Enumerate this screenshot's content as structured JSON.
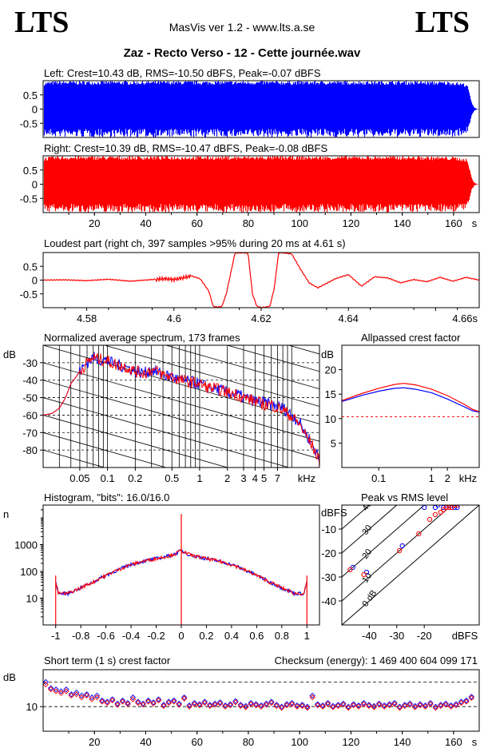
{
  "header": {
    "logo_left": "LTS",
    "logo_right": "LTS",
    "app": "MasVis ver 1.2 - www.lts.a.se",
    "file": "Zaz - Recto Verso - 12 - Cette journée.wav"
  },
  "colors": {
    "left": "#0000ff",
    "right": "#ff0000"
  },
  "chart_data": [
    {
      "id": "left",
      "type": "area",
      "title": "Left: Crest=10.43 dB, RMS=-10.50 dBFS, Peak=-0.07 dBFS",
      "y_ticks": [
        "0.5",
        "0",
        "-0.5"
      ],
      "ylim": [
        -1,
        1
      ],
      "xlim": [
        0,
        170
      ],
      "envelope": {
        "t": [
          0,
          2,
          5,
          10,
          20,
          40,
          60,
          80,
          100,
          120,
          140,
          150,
          160,
          165,
          166,
          167,
          168,
          169,
          170
        ],
        "amp": [
          0.95,
          0.97,
          0.99,
          0.99,
          0.99,
          0.99,
          0.99,
          0.99,
          0.99,
          0.99,
          0.99,
          0.98,
          0.97,
          0.9,
          0.6,
          0.2,
          0.05,
          0.01,
          0.0
        ]
      }
    },
    {
      "id": "right",
      "type": "area",
      "title": "Right: Crest=10.39 dB, RMS=-10.47 dBFS, Peak=-0.08 dBFS",
      "y_ticks": [
        "0.5",
        "0",
        "-0.5"
      ],
      "ylim": [
        -1,
        1
      ],
      "xlim": [
        0,
        170
      ],
      "x_ticks": [
        "20",
        "40",
        "60",
        "80",
        "100",
        "120",
        "140",
        "160"
      ],
      "x_unit": "s",
      "envelope": {
        "t": [
          0,
          2,
          5,
          10,
          20,
          40,
          60,
          80,
          100,
          120,
          140,
          150,
          160,
          165,
          166,
          167,
          168,
          169,
          170
        ],
        "amp": [
          0.95,
          0.97,
          0.99,
          0.99,
          0.99,
          0.99,
          0.99,
          0.99,
          0.99,
          0.99,
          0.99,
          0.98,
          0.97,
          0.9,
          0.6,
          0.2,
          0.05,
          0.01,
          0.0
        ]
      }
    },
    {
      "id": "loudest",
      "type": "line",
      "title": "Loudest part (right ch, 397 samples >95% during 20 ms at 4.61 s)",
      "y_ticks": [
        "0.5",
        "0",
        "-0.5"
      ],
      "ylim": [
        -1,
        1
      ],
      "xlim": [
        4.57,
        4.67
      ],
      "x_ticks": [
        "4.58",
        "4.6",
        "4.62",
        "4.64"
      ],
      "x_tick_end": "4.66s",
      "x": [
        4.57,
        4.575,
        4.58,
        4.585,
        4.59,
        4.595,
        4.598,
        4.6,
        4.602,
        4.604,
        4.606,
        4.608,
        4.609,
        4.61,
        4.611,
        4.612,
        4.614,
        4.616,
        4.617,
        4.618,
        4.619,
        4.62,
        4.621,
        4.622,
        4.623,
        4.624,
        4.625,
        4.627,
        4.629,
        4.631,
        4.633,
        4.635,
        4.637,
        4.64,
        4.643,
        4.646,
        4.649,
        4.652,
        4.655,
        4.658,
        4.661,
        4.664,
        4.667,
        4.67
      ],
      "y": [
        0.0,
        0.01,
        -0.02,
        0.03,
        -0.04,
        0.02,
        0.05,
        0.02,
        0.08,
        0.15,
        0.05,
        -0.4,
        -0.95,
        -0.98,
        -0.95,
        -0.5,
        0.98,
        0.99,
        0.97,
        -0.5,
        -0.95,
        -0.99,
        -0.98,
        -0.95,
        -0.3,
        0.99,
        0.99,
        0.95,
        0.4,
        -0.1,
        -0.28,
        -0.12,
        0.05,
        0.2,
        -0.22,
        0.12,
        0.08,
        -0.1,
        0.02,
        -0.06,
        0.1,
        -0.04,
        0.1,
        0.0
      ]
    },
    {
      "id": "spectrum",
      "type": "line",
      "title": "Normalized average spectrum, 173 frames",
      "ylabel": "dB",
      "ylim": [
        -90,
        -20
      ],
      "y_ticks": [
        "-30",
        "-40",
        "-50",
        "-60",
        "-70",
        "-80"
      ],
      "x_scale": "log",
      "xlim": [
        0.02,
        20
      ],
      "x_ticks": [
        "0.05",
        "0.1",
        "0.2",
        "0.5",
        "1",
        "2",
        "3",
        "4",
        "5",
        "7"
      ],
      "x_unit": "kHz",
      "x": [
        0.02,
        0.025,
        0.03,
        0.035,
        0.04,
        0.05,
        0.06,
        0.07,
        0.08,
        0.1,
        0.12,
        0.15,
        0.2,
        0.25,
        0.3,
        0.4,
        0.5,
        0.6,
        0.8,
        1,
        1.2,
        1.5,
        2,
        2.5,
        3,
        4,
        5,
        6,
        7,
        8,
        10,
        12,
        14,
        16,
        18,
        20
      ],
      "series": [
        {
          "values": [
            -60,
            -59,
            -56,
            -50,
            -42,
            -35,
            -30,
            -27,
            -28,
            -29,
            -31,
            -32,
            -35,
            -36,
            -34,
            -37,
            -38,
            -40,
            -41,
            -42,
            -44,
            -45,
            -47,
            -48,
            -50,
            -52,
            -53,
            -54,
            -55,
            -56,
            -60,
            -64,
            -70,
            -75,
            -80,
            -86
          ]
        },
        {
          "values": [
            -60,
            -59,
            -56,
            -50,
            -42,
            -35,
            -30,
            -27,
            -28,
            -29,
            -31,
            -32,
            -35,
            -36,
            -34,
            -37,
            -38,
            -40,
            -41,
            -42,
            -44,
            -45,
            -47,
            -48,
            -50,
            -52,
            -54,
            -54,
            -56,
            -57,
            -61,
            -65,
            -71,
            -76,
            -81,
            -87
          ]
        }
      ]
    },
    {
      "id": "allpass",
      "type": "line",
      "title": "Allpassed crest factor",
      "ylabel": "dB",
      "ylim": [
        0,
        25
      ],
      "y_ticks": [
        "20",
        "15",
        "10",
        "5"
      ],
      "x_scale": "log",
      "xlim": [
        0.02,
        8
      ],
      "x_ticks": [
        "0.1",
        "1",
        "2"
      ],
      "x_unit": "kHz",
      "reference": 10.4,
      "x": [
        0.02,
        0.05,
        0.1,
        0.2,
        0.3,
        0.5,
        1,
        2,
        4,
        6,
        8
      ],
      "series": [
        {
          "values": [
            13.5,
            14.8,
            15.6,
            16.2,
            16.3,
            16.0,
            15.3,
            14.0,
            12.5,
            11.6,
            11.3
          ]
        },
        {
          "values": [
            13.7,
            15.2,
            16.2,
            17.0,
            17.2,
            16.9,
            16.0,
            14.7,
            13.0,
            11.9,
            11.4
          ]
        }
      ]
    },
    {
      "id": "histogram",
      "type": "line",
      "title": "Histogram, \"bits\": 16.0/16.0",
      "ylabel": "n",
      "y_scale": "log",
      "ylim": [
        1,
        30000
      ],
      "y_ticks": [
        "1000",
        "100",
        "10"
      ],
      "xlim": [
        -1.1,
        1.1
      ],
      "x_ticks": [
        "-1",
        "-0.8",
        "-0.6",
        "-0.4",
        "-0.2",
        "0",
        "0.2",
        "0.4",
        "0.6",
        "0.8",
        "1"
      ],
      "x": [
        -1.0,
        -0.98,
        -0.9,
        -0.8,
        -0.7,
        -0.6,
        -0.5,
        -0.4,
        -0.3,
        -0.2,
        -0.1,
        -0.05,
        0,
        0.05,
        0.1,
        0.2,
        0.3,
        0.4,
        0.5,
        0.6,
        0.7,
        0.8,
        0.9,
        0.98,
        1.0
      ],
      "values": [
        40,
        15,
        15,
        24,
        40,
        70,
        115,
        180,
        240,
        300,
        380,
        450,
        600,
        450,
        380,
        300,
        240,
        180,
        115,
        70,
        40,
        24,
        15,
        15,
        40
      ]
    },
    {
      "id": "peak_rms",
      "type": "scatter",
      "title": "Peak vs RMS level",
      "ylabel": "dBFS",
      "xlabel": "dBFS",
      "xlim": [
        -50,
        0
      ],
      "ylim": [
        -50,
        0
      ],
      "x_ticks": [
        "-40",
        "-30",
        "-20"
      ],
      "y_ticks": [
        "-10",
        "-20",
        "-30",
        "-40"
      ],
      "diagonals": [
        "0 dB",
        "10",
        "20",
        "30",
        "40"
      ],
      "series": [
        {
          "x": [
            -46,
            -41,
            -28,
            -20,
            -16,
            -15,
            -13,
            -12,
            -11,
            -10,
            -9,
            -8
          ],
          "y": [
            -26,
            -28,
            -17,
            -1,
            -1,
            0,
            -1,
            -1,
            0,
            -1,
            -1,
            -1
          ]
        },
        {
          "x": [
            -47,
            -42,
            -29,
            -22,
            -18,
            -16,
            -14,
            -13,
            -12,
            -11,
            -10,
            -9,
            -8
          ],
          "y": [
            -27,
            -29,
            -19,
            -12,
            -6,
            -4,
            -3,
            -2,
            -1,
            -1,
            -1,
            0,
            0
          ]
        }
      ]
    },
    {
      "id": "crest_st",
      "type": "scatter",
      "title": "Short term (1 s) crest factor",
      "checksum_label": "Checksum (energy):",
      "checksum_value": "1 469 400 604 099 171",
      "ylabel": "dB",
      "y_ticks": [
        "10"
      ],
      "ylim": [
        6,
        16
      ],
      "xlim": [
        0,
        170
      ],
      "x_ticks": [
        "20",
        "40",
        "60",
        "80",
        "100",
        "120",
        "140",
        "160"
      ],
      "x_unit": "s",
      "ref_lines": [
        10,
        14
      ],
      "x": [
        1,
        3,
        5,
        7,
        9,
        11,
        13,
        15,
        17,
        19,
        21,
        23,
        25,
        27,
        29,
        31,
        33,
        35,
        37,
        39,
        41,
        43,
        45,
        47,
        49,
        51,
        53,
        55,
        57,
        59,
        61,
        63,
        65,
        67,
        69,
        71,
        73,
        75,
        77,
        79,
        81,
        83,
        85,
        87,
        89,
        91,
        93,
        95,
        97,
        99,
        101,
        103,
        105,
        107,
        109,
        111,
        113,
        115,
        117,
        119,
        121,
        123,
        125,
        127,
        129,
        131,
        133,
        135,
        137,
        139,
        141,
        143,
        145,
        147,
        149,
        151,
        153,
        155,
        157,
        159,
        161,
        163,
        165,
        167
      ],
      "series": [
        {
          "values": [
            14.0,
            13.0,
            12.8,
            12.5,
            12.8,
            12.0,
            12.3,
            11.8,
            12.0,
            11.5,
            11.8,
            11.0,
            10.8,
            11.2,
            10.5,
            11.0,
            10.6,
            11.5,
            10.8,
            10.5,
            11.0,
            10.7,
            11.2,
            10.3,
            10.8,
            11.0,
            10.5,
            11.5,
            10.2,
            10.6,
            10.4,
            10.8,
            10.3,
            10.5,
            10.7,
            10.2,
            10.4,
            10.9,
            10.3,
            10.1,
            10.6,
            10.4,
            10.2,
            10.5,
            10.8,
            10.3,
            10.0,
            10.4,
            10.6,
            10.2,
            10.3,
            10.0,
            11.8,
            10.4,
            10.2,
            10.6,
            10.1,
            10.3,
            10.5,
            10.0,
            10.4,
            10.2,
            10.6,
            10.3,
            10.1,
            10.5,
            10.2,
            10.4,
            10.6,
            10.0,
            10.3,
            10.5,
            10.1,
            10.4,
            10.2,
            10.6,
            10.0,
            10.3,
            10.5,
            10.2,
            10.4,
            10.8,
            11.0,
            11.6
          ]
        },
        {
          "values": [
            13.6,
            12.8,
            12.5,
            12.2,
            12.5,
            11.8,
            12.0,
            11.5,
            11.8,
            11.2,
            11.5,
            10.8,
            10.6,
            11.0,
            10.3,
            10.8,
            10.4,
            11.2,
            10.6,
            10.3,
            10.8,
            10.5,
            11.0,
            10.1,
            10.6,
            10.8,
            10.3,
            11.3,
            10.0,
            10.4,
            10.2,
            10.6,
            10.1,
            10.3,
            10.5,
            10.0,
            10.2,
            10.7,
            10.1,
            9.9,
            10.4,
            10.2,
            10.0,
            10.3,
            10.6,
            10.1,
            9.8,
            10.2,
            10.4,
            10.0,
            10.1,
            9.8,
            11.5,
            10.2,
            10.0,
            10.4,
            9.9,
            10.1,
            10.3,
            9.8,
            10.2,
            10.0,
            10.4,
            10.1,
            9.9,
            10.3,
            10.0,
            10.2,
            10.4,
            9.8,
            10.1,
            10.3,
            9.9,
            10.2,
            10.0,
            10.4,
            9.8,
            10.1,
            10.3,
            10.0,
            10.2,
            10.6,
            10.8,
            11.4
          ]
        }
      ]
    }
  ]
}
